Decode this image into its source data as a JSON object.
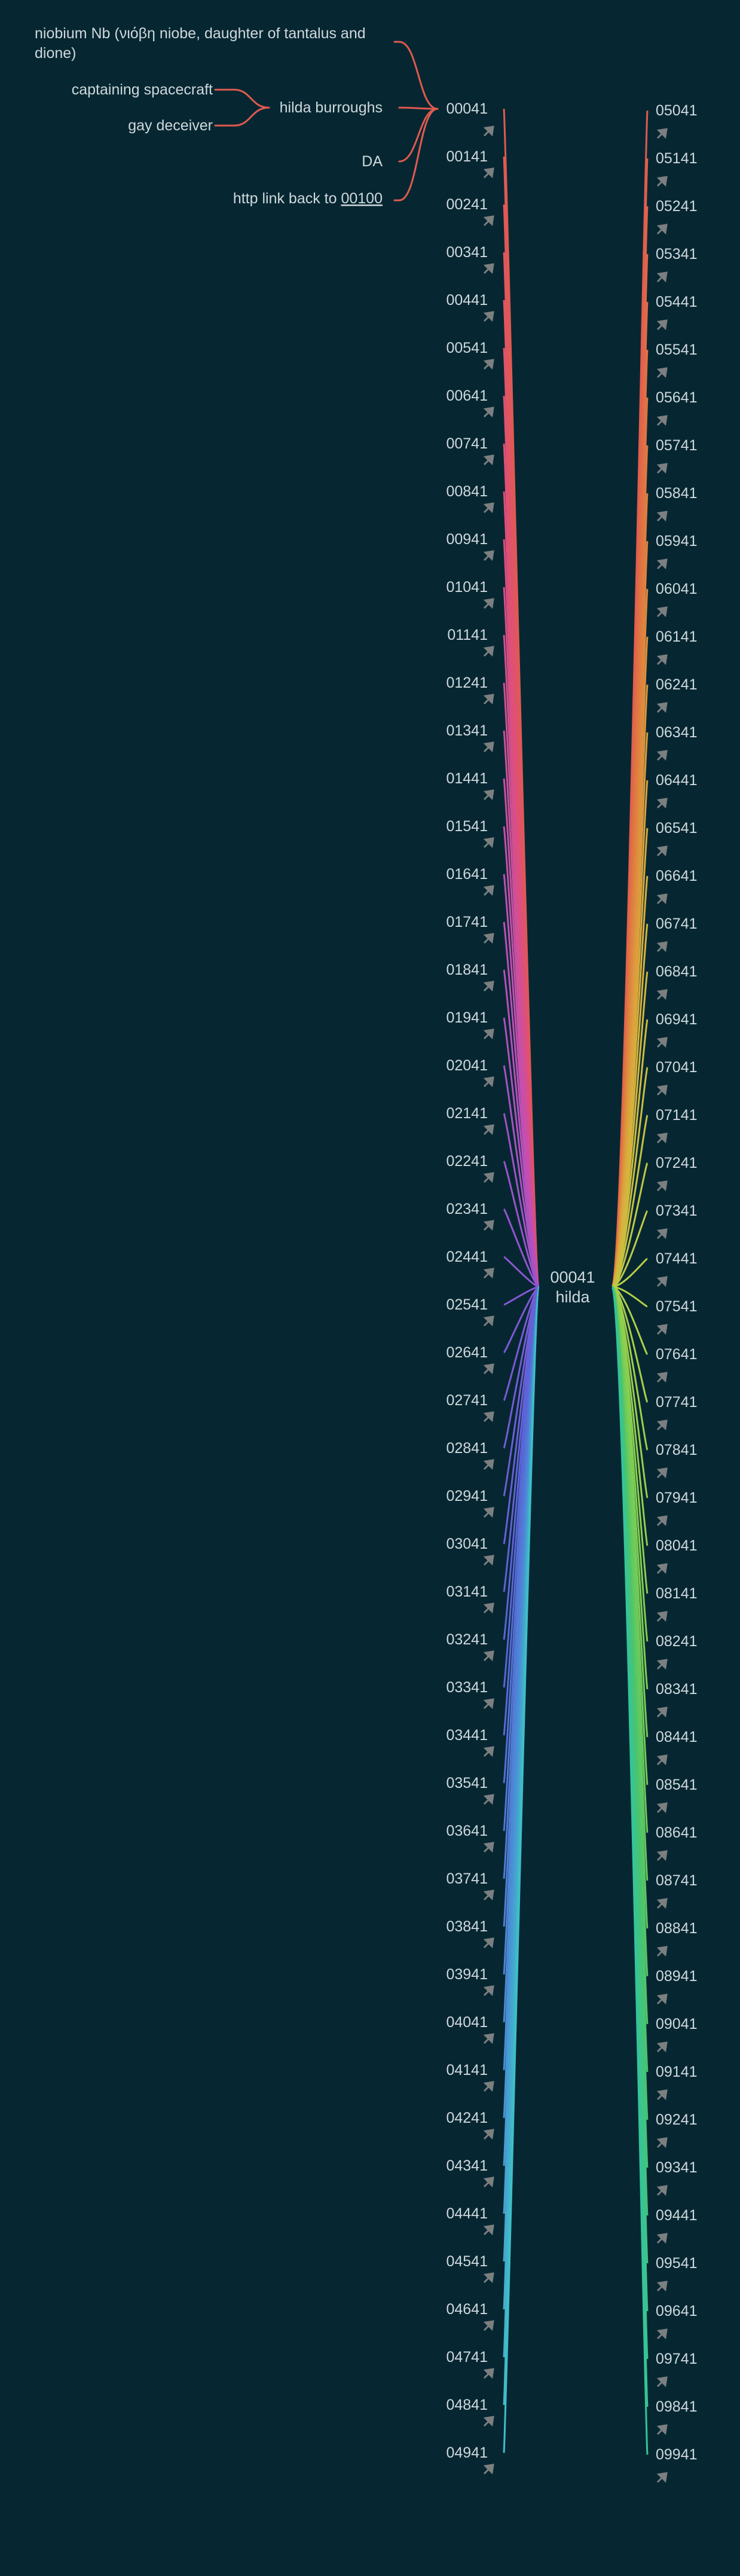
{
  "center": {
    "line1": "00041",
    "line2": "hilda"
  },
  "root_node": "00041",
  "root_children": {
    "niobium": "niobium Nb (νιόβη niobe, daughter of tantalus and dione)",
    "hilda": "hilda burroughs",
    "hilda_children": [
      "captaining spacecraft",
      "gay deceiver"
    ],
    "da": "DA",
    "link_prefix": "http link back to ",
    "link_text": "00100"
  },
  "left_nodes": [
    "00041",
    "00141",
    "00241",
    "00341",
    "00441",
    "00541",
    "00641",
    "00741",
    "00841",
    "00941",
    "01041",
    "01141",
    "01241",
    "01341",
    "01441",
    "01541",
    "01641",
    "01741",
    "01841",
    "01941",
    "02041",
    "02141",
    "02241",
    "02341",
    "02441",
    "02541",
    "02641",
    "02741",
    "02841",
    "02941",
    "03041",
    "03141",
    "03241",
    "03341",
    "03441",
    "03541",
    "03641",
    "03741",
    "03841",
    "03941",
    "04041",
    "04141",
    "04241",
    "04341",
    "04441",
    "04541",
    "04641",
    "04741",
    "04841",
    "04941"
  ],
  "right_nodes": [
    "05041",
    "05141",
    "05241",
    "05341",
    "05441",
    "05541",
    "05641",
    "05741",
    "05841",
    "05941",
    "06041",
    "06141",
    "06241",
    "06341",
    "06441",
    "06541",
    "06641",
    "06741",
    "06841",
    "06941",
    "07041",
    "07141",
    "07241",
    "07341",
    "07441",
    "07541",
    "07641",
    "07741",
    "07841",
    "07941",
    "08041",
    "08141",
    "08241",
    "08341",
    "08441",
    "08541",
    "08641",
    "08741",
    "08841",
    "08941",
    "09041",
    "09141",
    "09241",
    "09341",
    "09441",
    "09541",
    "09641",
    "09741",
    "09841",
    "09941"
  ],
  "colors": {
    "background": "#062732",
    "text": "#cfd8dc",
    "arrow_icon": "#7c7f80",
    "root_branch": "#e05a4f",
    "left_gradient": [
      "#e05a4f",
      "#df4f7a",
      "#c24fb4",
      "#8a55d4",
      "#5a64d8",
      "#4a8fd6",
      "#3fbfc8"
    ],
    "right_gradient": [
      "#e05a4f",
      "#e07f3f",
      "#d9b13c",
      "#b9cf45",
      "#7fcf52",
      "#49c46e",
      "#35c49a"
    ]
  },
  "icons": {
    "node_link": "arrow-icon"
  }
}
